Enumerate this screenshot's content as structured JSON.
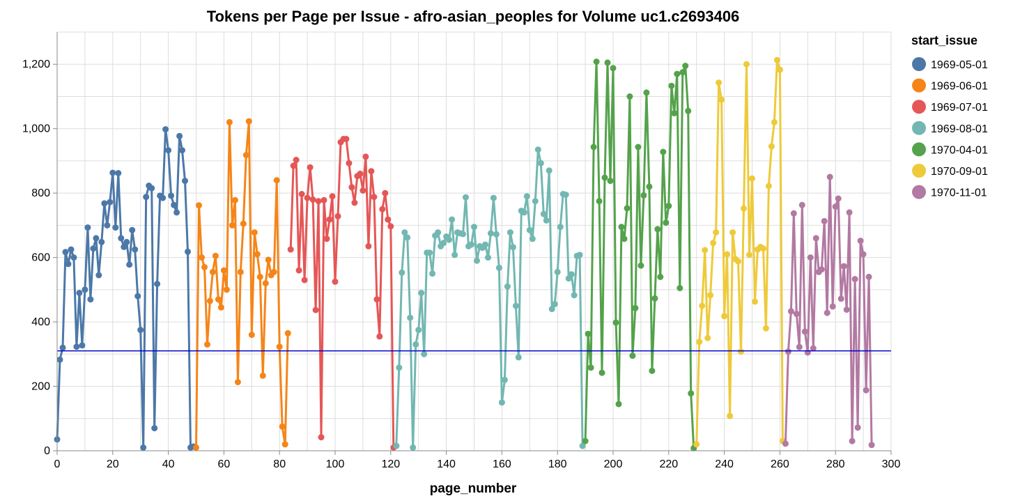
{
  "chart_data": {
    "type": "line",
    "title": "Tokens per Page per Issue - afro-asian_peoples for Volume uc1.c2693406",
    "xlabel": "page_number",
    "ylabel": "",
    "xlim": [
      0,
      300
    ],
    "ylim": [
      0,
      1300
    ],
    "x_ticks": [
      "0",
      "20",
      "40",
      "60",
      "80",
      "100",
      "120",
      "140",
      "160",
      "180",
      "200",
      "220",
      "240",
      "260",
      "280",
      "300"
    ],
    "y_ticks": [
      "0",
      "200",
      "400",
      "600",
      "800",
      "1,000",
      "1,200"
    ],
    "grid": true,
    "legend_title": "start_issue",
    "legend_position": "right",
    "reference_line": {
      "y": 310,
      "color": "#0000cc"
    },
    "series": [
      {
        "name": "1969-05-01",
        "color": "#4c78a8",
        "points": [
          [
            0,
            35
          ],
          [
            1,
            283
          ],
          [
            2,
            320
          ],
          [
            3,
            617
          ],
          [
            4,
            580
          ],
          [
            5,
            625
          ],
          [
            6,
            600
          ],
          [
            7,
            323
          ],
          [
            8,
            490
          ],
          [
            9,
            327
          ],
          [
            10,
            500
          ],
          [
            11,
            693
          ],
          [
            12,
            470
          ],
          [
            13,
            628
          ],
          [
            14,
            660
          ],
          [
            15,
            545
          ],
          [
            16,
            648
          ],
          [
            17,
            768
          ],
          [
            18,
            700
          ],
          [
            19,
            772
          ],
          [
            20,
            863
          ],
          [
            21,
            693
          ],
          [
            22,
            862
          ],
          [
            23,
            660
          ],
          [
            24,
            633
          ],
          [
            25,
            648
          ],
          [
            26,
            578
          ],
          [
            27,
            685
          ],
          [
            28,
            625
          ],
          [
            29,
            480
          ],
          [
            30,
            375
          ],
          [
            31,
            10
          ],
          [
            32,
            788
          ],
          [
            33,
            823
          ],
          [
            34,
            815
          ],
          [
            35,
            70
          ],
          [
            36,
            518
          ],
          [
            37,
            792
          ],
          [
            38,
            785
          ],
          [
            39,
            998
          ],
          [
            40,
            933
          ],
          [
            41,
            792
          ],
          [
            42,
            763
          ],
          [
            43,
            740
          ],
          [
            44,
            977
          ],
          [
            45,
            933
          ],
          [
            46,
            838
          ],
          [
            47,
            618
          ],
          [
            48,
            10
          ],
          [
            49,
            13
          ]
        ]
      },
      {
        "name": "1969-06-01",
        "color": "#f58518",
        "points": [
          [
            50,
            10
          ],
          [
            51,
            762
          ],
          [
            52,
            600
          ],
          [
            53,
            570
          ],
          [
            54,
            330
          ],
          [
            55,
            465
          ],
          [
            56,
            555
          ],
          [
            57,
            605
          ],
          [
            58,
            470
          ],
          [
            59,
            445
          ],
          [
            60,
            560
          ],
          [
            61,
            500
          ],
          [
            62,
            1020
          ],
          [
            63,
            700
          ],
          [
            64,
            778
          ],
          [
            65,
            213
          ],
          [
            66,
            555
          ],
          [
            67,
            705
          ],
          [
            68,
            918
          ],
          [
            69,
            1023
          ],
          [
            70,
            360
          ],
          [
            71,
            678
          ],
          [
            72,
            610
          ],
          [
            73,
            540
          ],
          [
            74,
            233
          ],
          [
            75,
            520
          ],
          [
            76,
            593
          ],
          [
            77,
            545
          ],
          [
            78,
            555
          ],
          [
            79,
            840
          ],
          [
            80,
            323
          ],
          [
            81,
            75
          ],
          [
            82,
            20
          ],
          [
            83,
            365
          ]
        ]
      },
      {
        "name": "1969-07-01",
        "color": "#e45756",
        "points": [
          [
            84,
            625
          ],
          [
            85,
            885
          ],
          [
            86,
            903
          ],
          [
            87,
            560
          ],
          [
            88,
            797
          ],
          [
            89,
            530
          ],
          [
            90,
            785
          ],
          [
            91,
            880
          ],
          [
            92,
            780
          ],
          [
            93,
            437
          ],
          [
            94,
            775
          ],
          [
            95,
            42
          ],
          [
            96,
            778
          ],
          [
            97,
            658
          ],
          [
            98,
            718
          ],
          [
            99,
            790
          ],
          [
            100,
            525
          ],
          [
            101,
            728
          ],
          [
            102,
            958
          ],
          [
            103,
            968
          ],
          [
            104,
            968
          ],
          [
            105,
            893
          ],
          [
            106,
            818
          ],
          [
            107,
            770
          ],
          [
            108,
            853
          ],
          [
            109,
            860
          ],
          [
            110,
            808
          ],
          [
            111,
            913
          ],
          [
            112,
            635
          ],
          [
            113,
            868
          ],
          [
            114,
            788
          ],
          [
            115,
            470
          ],
          [
            116,
            355
          ],
          [
            117,
            750
          ],
          [
            118,
            800
          ],
          [
            119,
            718
          ],
          [
            120,
            697
          ],
          [
            121,
            10
          ],
          [
            122,
            15
          ]
        ]
      },
      {
        "name": "1969-08-01",
        "color": "#72b7b2",
        "points": [
          [
            122,
            15
          ],
          [
            123,
            258
          ],
          [
            124,
            553
          ],
          [
            125,
            678
          ],
          [
            126,
            662
          ],
          [
            127,
            413
          ],
          [
            128,
            10
          ],
          [
            129,
            330
          ],
          [
            130,
            375
          ],
          [
            131,
            490
          ],
          [
            132,
            300
          ],
          [
            133,
            615
          ],
          [
            134,
            615
          ],
          [
            135,
            550
          ],
          [
            136,
            668
          ],
          [
            137,
            678
          ],
          [
            138,
            635
          ],
          [
            139,
            645
          ],
          [
            140,
            665
          ],
          [
            141,
            655
          ],
          [
            142,
            718
          ],
          [
            143,
            608
          ],
          [
            144,
            678
          ],
          [
            145,
            675
          ],
          [
            146,
            673
          ],
          [
            147,
            787
          ],
          [
            148,
            635
          ],
          [
            149,
            640
          ],
          [
            150,
            695
          ],
          [
            151,
            590
          ],
          [
            152,
            635
          ],
          [
            153,
            630
          ],
          [
            154,
            640
          ],
          [
            155,
            600
          ],
          [
            156,
            675
          ],
          [
            157,
            785
          ],
          [
            158,
            672
          ],
          [
            159,
            568
          ],
          [
            160,
            150
          ],
          [
            161,
            220
          ],
          [
            162,
            510
          ],
          [
            163,
            678
          ],
          [
            164,
            632
          ],
          [
            165,
            450
          ],
          [
            166,
            290
          ],
          [
            167,
            745
          ],
          [
            168,
            740
          ],
          [
            169,
            790
          ],
          [
            170,
            685
          ],
          [
            171,
            658
          ],
          [
            172,
            775
          ],
          [
            173,
            935
          ],
          [
            174,
            893
          ],
          [
            175,
            735
          ],
          [
            176,
            715
          ],
          [
            177,
            870
          ],
          [
            178,
            440
          ],
          [
            179,
            455
          ],
          [
            180,
            555
          ],
          [
            181,
            695
          ],
          [
            182,
            797
          ],
          [
            183,
            795
          ],
          [
            184,
            535
          ],
          [
            185,
            548
          ],
          [
            186,
            483
          ],
          [
            187,
            605
          ],
          [
            188,
            608
          ],
          [
            189,
            15
          ]
        ]
      },
      {
        "name": "1970-04-01",
        "color": "#54a24b",
        "points": [
          [
            190,
            30
          ],
          [
            191,
            363
          ],
          [
            192,
            258
          ],
          [
            193,
            943
          ],
          [
            194,
            1208
          ],
          [
            195,
            775
          ],
          [
            196,
            242
          ],
          [
            197,
            848
          ],
          [
            198,
            1205
          ],
          [
            199,
            838
          ],
          [
            200,
            1188
          ],
          [
            201,
            398
          ],
          [
            202,
            145
          ],
          [
            203,
            695
          ],
          [
            204,
            658
          ],
          [
            205,
            753
          ],
          [
            206,
            1100
          ],
          [
            207,
            295
          ],
          [
            208,
            443
          ],
          [
            209,
            943
          ],
          [
            210,
            575
          ],
          [
            211,
            793
          ],
          [
            212,
            1112
          ],
          [
            213,
            820
          ],
          [
            214,
            248
          ],
          [
            215,
            473
          ],
          [
            216,
            688
          ],
          [
            217,
            540
          ],
          [
            218,
            928
          ],
          [
            219,
            708
          ],
          [
            220,
            760
          ],
          [
            221,
            1133
          ],
          [
            222,
            1048
          ],
          [
            223,
            1170
          ],
          [
            224,
            505
          ],
          [
            225,
            1175
          ],
          [
            226,
            1195
          ],
          [
            227,
            1055
          ],
          [
            228,
            178
          ],
          [
            229,
            8
          ]
        ]
      },
      {
        "name": "1970-09-01",
        "color": "#eeca3b",
        "points": [
          [
            230,
            20
          ],
          [
            231,
            338
          ],
          [
            232,
            450
          ],
          [
            233,
            623
          ],
          [
            234,
            350
          ],
          [
            235,
            483
          ],
          [
            236,
            645
          ],
          [
            237,
            678
          ],
          [
            238,
            1143
          ],
          [
            239,
            1090
          ],
          [
            240,
            418
          ],
          [
            241,
            610
          ],
          [
            242,
            108
          ],
          [
            243,
            678
          ],
          [
            244,
            595
          ],
          [
            245,
            588
          ],
          [
            246,
            308
          ],
          [
            247,
            752
          ],
          [
            248,
            1200
          ],
          [
            249,
            608
          ],
          [
            250,
            845
          ],
          [
            251,
            463
          ],
          [
            252,
            625
          ],
          [
            253,
            633
          ],
          [
            254,
            628
          ],
          [
            255,
            380
          ],
          [
            256,
            822
          ],
          [
            257,
            945
          ],
          [
            258,
            1020
          ],
          [
            259,
            1213
          ],
          [
            260,
            1183
          ],
          [
            261,
            30
          ]
        ]
      },
      {
        "name": "1970-11-01",
        "color": "#b279a2",
        "points": [
          [
            262,
            22
          ],
          [
            263,
            308
          ],
          [
            264,
            433
          ],
          [
            265,
            737
          ],
          [
            266,
            425
          ],
          [
            267,
            322
          ],
          [
            268,
            763
          ],
          [
            269,
            370
          ],
          [
            270,
            305
          ],
          [
            271,
            600
          ],
          [
            272,
            318
          ],
          [
            273,
            660
          ],
          [
            274,
            555
          ],
          [
            275,
            563
          ],
          [
            276,
            713
          ],
          [
            277,
            428
          ],
          [
            278,
            850
          ],
          [
            279,
            448
          ],
          [
            280,
            758
          ],
          [
            281,
            783
          ],
          [
            282,
            472
          ],
          [
            283,
            573
          ],
          [
            284,
            438
          ],
          [
            285,
            740
          ],
          [
            286,
            30
          ],
          [
            287,
            533
          ],
          [
            288,
            72
          ],
          [
            289,
            652
          ],
          [
            290,
            610
          ],
          [
            291,
            188
          ],
          [
            292,
            540
          ],
          [
            293,
            18
          ]
        ]
      }
    ]
  }
}
